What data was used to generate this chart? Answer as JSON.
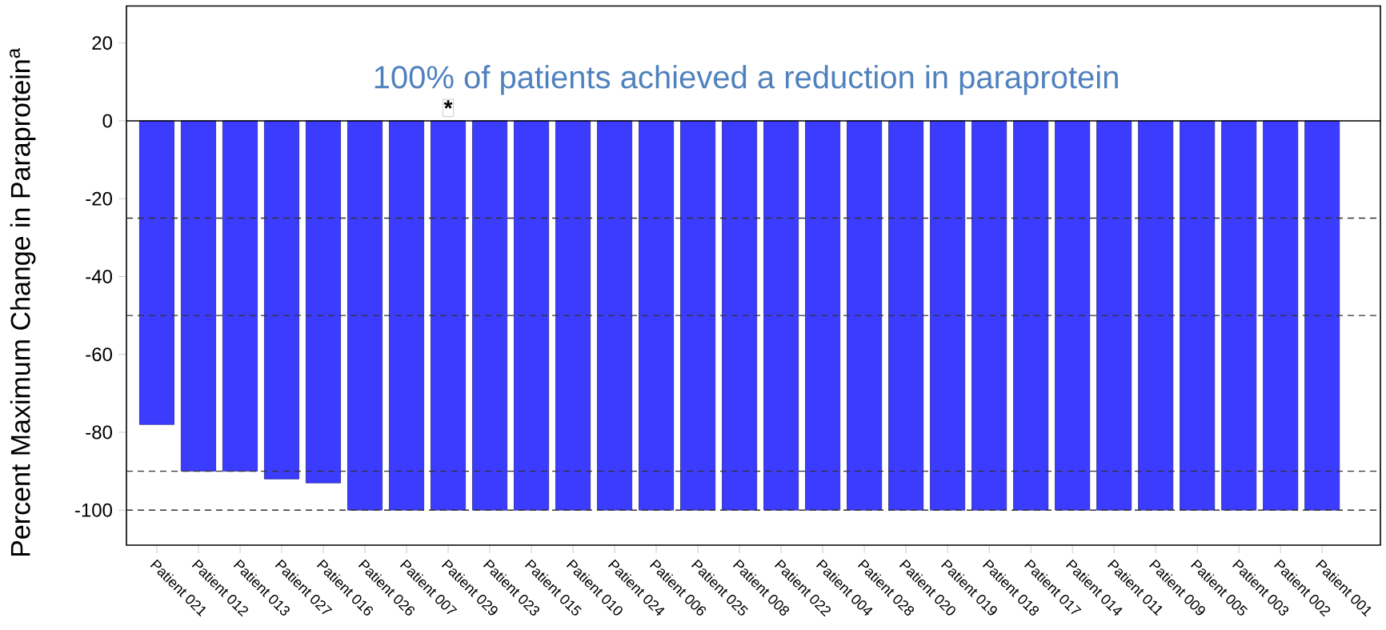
{
  "chart_data": {
    "type": "bar",
    "ylabel": "Percent Maximum Change in Paraprotein$^{a}$",
    "categories": [
      "Patient 021",
      "Patient 012",
      "Patient 013",
      "Patient 027",
      "Patient 016",
      "Patient 026",
      "Patient 007",
      "Patient 029",
      "Patient 023",
      "Patient 015",
      "Patient 010",
      "Patient 024",
      "Patient 006",
      "Patient 025",
      "Patient 008",
      "Patient 022",
      "Patient 004",
      "Patient 028",
      "Patient 020",
      "Patient 019",
      "Patient 018",
      "Patient 017",
      "Patient 014",
      "Patient 011",
      "Patient 009",
      "Patient 005",
      "Patient 003",
      "Patient 002",
      "Patient 001"
    ],
    "values": [
      -78,
      -90,
      -90,
      -92,
      -93,
      -100,
      -100,
      -100,
      -100,
      -100,
      -100,
      -100,
      -100,
      -100,
      -100,
      -100,
      -100,
      -100,
      -100,
      -100,
      -100,
      -100,
      -100,
      -100,
      -100,
      -100,
      -100,
      -100,
      -100
    ],
    "color": "#3c3cff",
    "ylim": [
      -109,
      29.5
    ],
    "yticks": [
      20,
      0,
      -20,
      -40,
      -60,
      -80,
      -100
    ],
    "ref_lines": [
      {
        "axis": "y",
        "value": -25,
        "line_style": "dashed"
      },
      {
        "axis": "y",
        "value": -50,
        "line_style": "dashed"
      },
      {
        "axis": "y",
        "value": -90,
        "line_style": "dashed"
      },
      {
        "axis": "y",
        "value": -100,
        "line_style": "dashed"
      }
    ],
    "annotations": [
      "100% of patients achieved a reduction in paraprotein",
      "*"
    ],
    "grid": false
  }
}
